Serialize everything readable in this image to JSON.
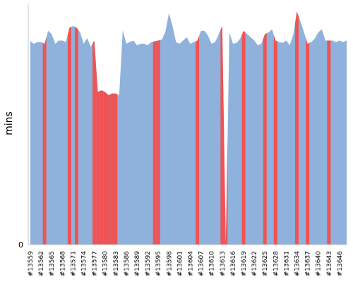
{
  "chart_data": {
    "type": "area",
    "title": "",
    "xlabel": "",
    "ylabel": "mins",
    "ylim": [
      0,
      1500
    ],
    "y_ticks": [
      "0"
    ],
    "grid": false,
    "legend": "none",
    "colors": {
      "series": "#8eb2dc",
      "highlight": "#f05353"
    },
    "tick_labels": [
      "#13559",
      "#13562",
      "#13565",
      "#13568",
      "#13571",
      "#13574",
      "#13577",
      "#13580",
      "#13583",
      "#13586",
      "#13589",
      "#13592",
      "#13595",
      "#13598",
      "#13601",
      "#13604",
      "#13607",
      "#13610",
      "#13613",
      "#13616",
      "#13619",
      "#13622",
      "#13625",
      "#13628",
      "#13631",
      "#13634",
      "#13637",
      "#13640",
      "#13643",
      "#13646"
    ],
    "x_start": 13559,
    "x_end": 13648,
    "series": [
      {
        "values": [
          1265,
          1250,
          1260,
          1260,
          1250,
          1330,
          1310,
          1250,
          1270,
          1270,
          1260,
          1350,
          1360,
          1350,
          1320,
          1250,
          1285,
          1230,
          1270,
          950,
          960,
          950,
          930,
          940,
          940,
          930,
          1335,
          1250,
          1260,
          1270,
          1240,
          1250,
          1250,
          1240,
          1260,
          1265,
          1270,
          1275,
          1325,
          1440,
          1360,
          1260,
          1250,
          1270,
          1290,
          1250,
          1260,
          1270,
          1330,
          1330,
          1300,
          1250,
          1260,
          1310,
          1360,
          0,
          1320,
          1250,
          1255,
          1280,
          1330,
          1310,
          1290,
          1270,
          1240,
          1250,
          1310,
          1320,
          1340,
          1270,
          1260,
          1255,
          1270,
          1240,
          1310,
          1450,
          1390,
          1320,
          1250,
          1260,
          1280,
          1320,
          1340,
          1270,
          1270,
          1270,
          1260,
          1270,
          1260,
          1270
        ],
        "highlight_ids": [
          13563,
          13570,
          13572,
          13577,
          13578,
          13579,
          13580,
          13581,
          13582,
          13583,
          13594,
          13595,
          13606,
          13613,
          13614,
          13619,
          13625,
          13628,
          13634,
          13637,
          13643
        ]
      }
    ]
  }
}
